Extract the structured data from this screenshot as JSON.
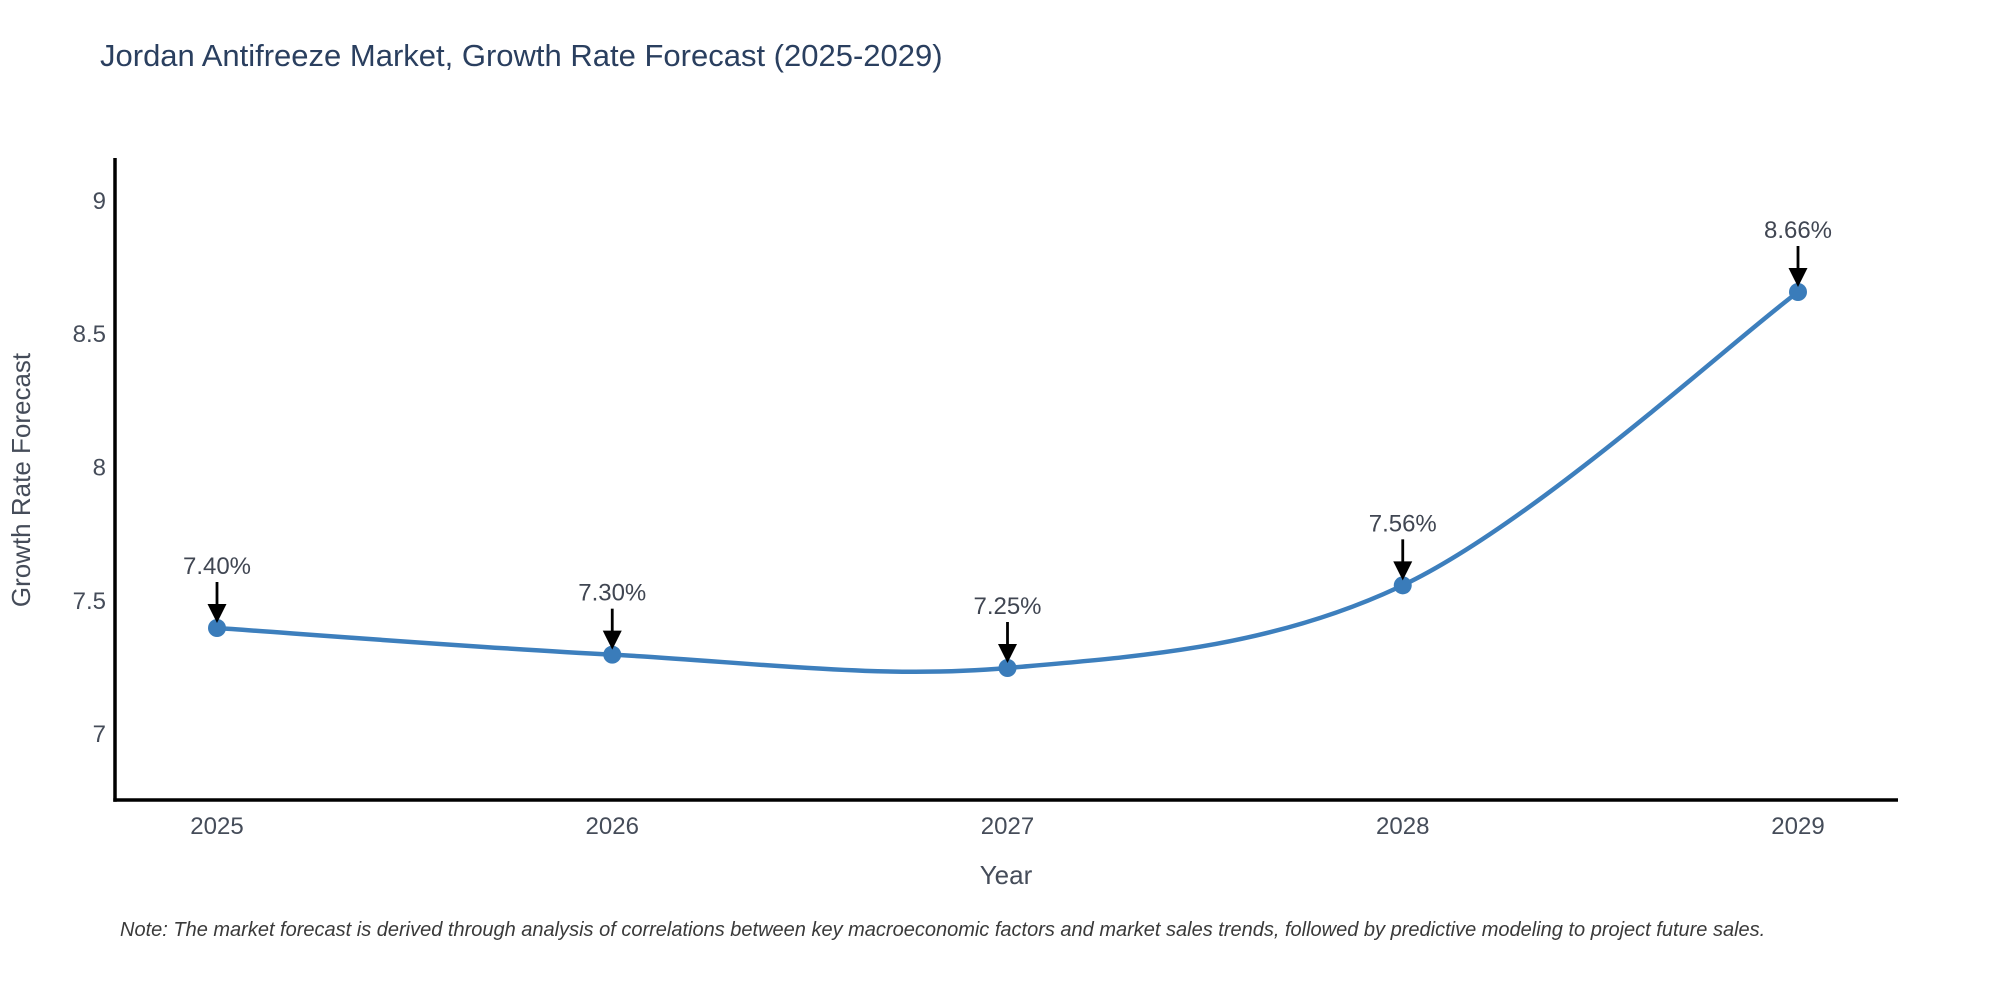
{
  "note": "Note: The market forecast is derived through analysis of correlations between key macroeconomic factors and market sales trends, followed by predictive modeling to project future sales.",
  "colors": {
    "title_text": "#2a3f5f",
    "axis_line": "#000000",
    "tick_text": "#454c59",
    "annotation_text": "#404652",
    "annotation_arrow": "#000000",
    "note_text": "#3a3a3a"
  },
  "chart_data": {
    "type": "line",
    "title": "Jordan Antifreeze Market, Growth Rate Forecast (2025-2029)",
    "xlabel": "Year",
    "ylabel": "Growth Rate Forecast",
    "x": [
      2025,
      2026,
      2027,
      2028,
      2029
    ],
    "y": [
      7.4,
      7.3,
      7.25,
      7.56,
      8.66
    ],
    "point_labels": [
      "7.40%",
      "7.30%",
      "7.25%",
      "7.56%",
      "8.66%"
    ],
    "xtick_labels": [
      "2025",
      "2026",
      "2027",
      "2028",
      "2029"
    ],
    "yticks": [
      7,
      7.5,
      8,
      8.5,
      9
    ],
    "ytick_labels": [
      "7",
      "7.5",
      "8",
      "8.5",
      "9"
    ],
    "xlim": [
      2024.74,
      2029.25
    ],
    "ylim": [
      6.76,
      9.16
    ],
    "grid": false,
    "legend": null,
    "line_shape": "spline",
    "line_color": "#3d7fbd",
    "marker_color": "#3a7cba"
  }
}
